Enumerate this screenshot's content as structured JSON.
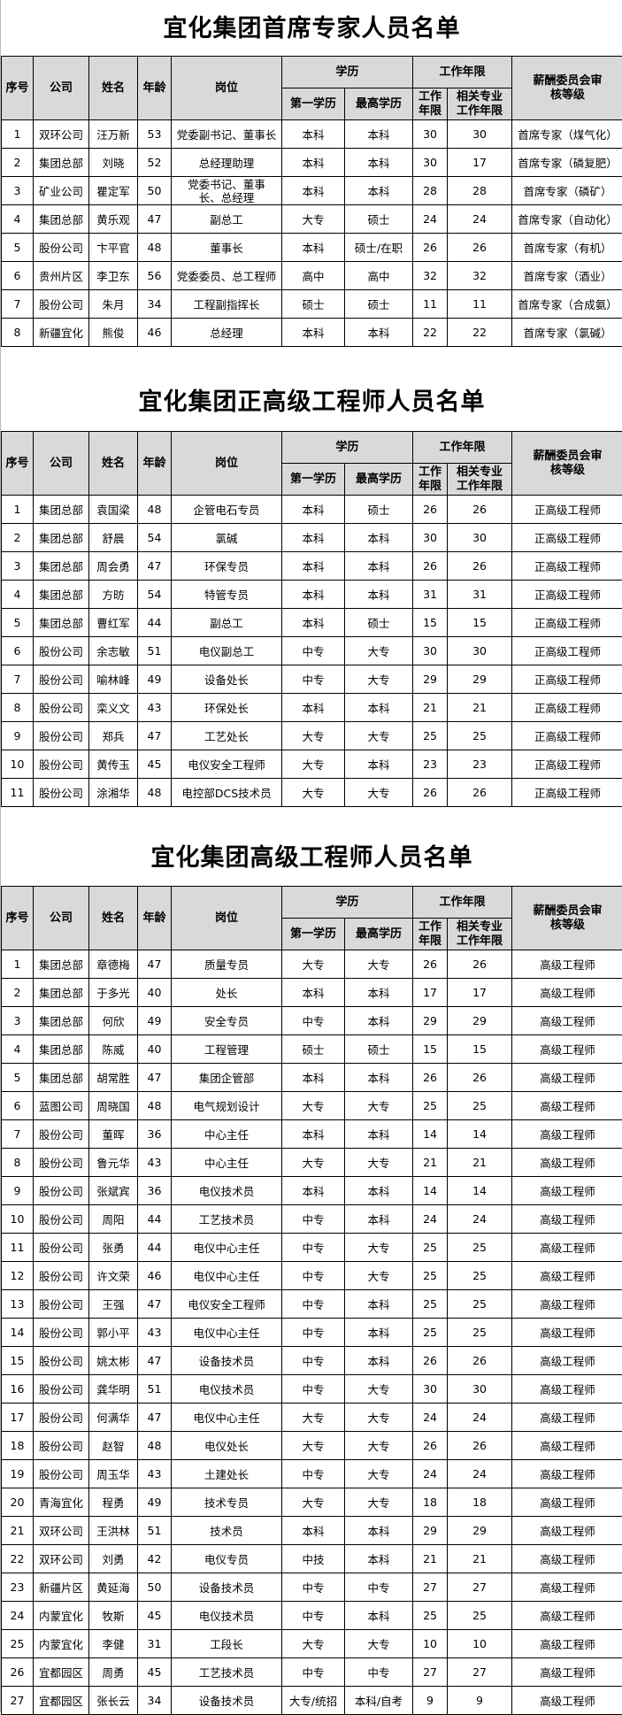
{
  "columns": {
    "no": "序号",
    "company": "公司",
    "name": "姓名",
    "age": "年龄",
    "position": "岗位",
    "education": "学历",
    "first_edu": "第一学历",
    "highest_edu": "最高学历",
    "work_years": "工作年限",
    "years": "工作年限",
    "related_years": "相关专业工作年限",
    "level": "薪酬委员会审核等级"
  },
  "tables": [
    {
      "title": "宜化集团首席专家人员名单",
      "rows": [
        [
          "1",
          "双环公司",
          "汪万新",
          "53",
          "党委副书记、董事长",
          "本科",
          "本科",
          "30",
          "30",
          "首席专家（煤气化）"
        ],
        [
          "2",
          "集团总部",
          "刘晓",
          "52",
          "总经理助理",
          "本科",
          "本科",
          "30",
          "17",
          "首席专家（磷复肥）"
        ],
        [
          "3",
          "矿业公司",
          "瞿定军",
          "50",
          "党委书记、董事长、总经理",
          "本科",
          "本科",
          "28",
          "28",
          "首席专家（磷矿）"
        ],
        [
          "4",
          "集团总部",
          "黄乐观",
          "47",
          "副总工",
          "大专",
          "硕士",
          "24",
          "24",
          "首席专家（自动化）"
        ],
        [
          "5",
          "股份公司",
          "卞平官",
          "48",
          "董事长",
          "本科",
          "硕士/在职",
          "26",
          "26",
          "首席专家（有机）"
        ],
        [
          "6",
          "贵州片区",
          "李卫东",
          "56",
          "党委委员、总工程师",
          "高中",
          "高中",
          "32",
          "32",
          "首席专家（酒业）"
        ],
        [
          "7",
          "股份公司",
          "朱月",
          "34",
          "工程副指挥长",
          "硕士",
          "硕士",
          "11",
          "11",
          "首席专家（合成氨）"
        ],
        [
          "8",
          "新疆宜化",
          "熊俊",
          "46",
          "总经理",
          "本科",
          "本科",
          "22",
          "22",
          "首席专家（氯碱）"
        ]
      ]
    },
    {
      "title": "宜化集团正高级工程师人员名单",
      "rows": [
        [
          "1",
          "集团总部",
          "袁国梁",
          "48",
          "企管电石专员",
          "本科",
          "硕士",
          "26",
          "26",
          "正高级工程师"
        ],
        [
          "2",
          "集团总部",
          "舒晨",
          "54",
          "氯碱",
          "本科",
          "本科",
          "30",
          "30",
          "正高级工程师"
        ],
        [
          "3",
          "集团总部",
          "周会勇",
          "47",
          "环保专员",
          "本科",
          "本科",
          "26",
          "26",
          "正高级工程师"
        ],
        [
          "4",
          "集团总部",
          "方昉",
          "54",
          "特管专员",
          "本科",
          "本科",
          "31",
          "31",
          "正高级工程师"
        ],
        [
          "5",
          "集团总部",
          "曹红军",
          "44",
          "副总工",
          "本科",
          "硕士",
          "15",
          "15",
          "正高级工程师"
        ],
        [
          "6",
          "股份公司",
          "余志敏",
          "51",
          "电仪副总工",
          "中专",
          "大专",
          "30",
          "30",
          "正高级工程师"
        ],
        [
          "7",
          "股份公司",
          "喻林峰",
          "49",
          "设备处长",
          "中专",
          "大专",
          "29",
          "29",
          "正高级工程师"
        ],
        [
          "8",
          "股份公司",
          "栾义文",
          "43",
          "环保处长",
          "本科",
          "本科",
          "21",
          "21",
          "正高级工程师"
        ],
        [
          "9",
          "股份公司",
          "郑兵",
          "47",
          "工艺处长",
          "大专",
          "大专",
          "25",
          "25",
          "正高级工程师"
        ],
        [
          "10",
          "股份公司",
          "黄传玉",
          "45",
          "电仪安全工程师",
          "大专",
          "本科",
          "23",
          "23",
          "正高级工程师"
        ],
        [
          "11",
          "股份公司",
          "涂湘华",
          "48",
          "电控部DCS技术员",
          "大专",
          "大专",
          "26",
          "26",
          "正高级工程师"
        ]
      ]
    },
    {
      "title": "宜化集团高级工程师人员名单",
      "rows": [
        [
          "1",
          "集团总部",
          "章德梅",
          "47",
          "质量专员",
          "大专",
          "大专",
          "26",
          "26",
          "高级工程师"
        ],
        [
          "2",
          "集团总部",
          "于多光",
          "40",
          "处长",
          "本科",
          "本科",
          "17",
          "17",
          "高级工程师"
        ],
        [
          "3",
          "集团总部",
          "何欣",
          "49",
          "安全专员",
          "中专",
          "本科",
          "29",
          "29",
          "高级工程师"
        ],
        [
          "4",
          "集团总部",
          "陈威",
          "40",
          "工程管理",
          "硕士",
          "硕士",
          "15",
          "15",
          "高级工程师"
        ],
        [
          "5",
          "集团总部",
          "胡常胜",
          "47",
          "集团企管部",
          "本科",
          "本科",
          "26",
          "26",
          "高级工程师"
        ],
        [
          "6",
          "蓝图公司",
          "周晓国",
          "48",
          "电气规划设计",
          "大专",
          "大专",
          "25",
          "25",
          "高级工程师"
        ],
        [
          "7",
          "股份公司",
          "董晖",
          "36",
          "中心主任",
          "本科",
          "本科",
          "14",
          "14",
          "高级工程师"
        ],
        [
          "8",
          "股份公司",
          "鲁元华",
          "43",
          "中心主任",
          "大专",
          "大专",
          "21",
          "21",
          "高级工程师"
        ],
        [
          "9",
          "股份公司",
          "张斌宾",
          "36",
          "电仪技术员",
          "本科",
          "本科",
          "14",
          "14",
          "高级工程师"
        ],
        [
          "10",
          "股份公司",
          "周阳",
          "44",
          "工艺技术员",
          "中专",
          "本科",
          "24",
          "24",
          "高级工程师"
        ],
        [
          "11",
          "股份公司",
          "张勇",
          "44",
          "电仪中心主任",
          "中专",
          "大专",
          "25",
          "25",
          "高级工程师"
        ],
        [
          "12",
          "股份公司",
          "许文荣",
          "46",
          "电仪中心主任",
          "中专",
          "大专",
          "25",
          "25",
          "高级工程师"
        ],
        [
          "13",
          "股份公司",
          "王强",
          "47",
          "电仪安全工程师",
          "中专",
          "本科",
          "25",
          "25",
          "高级工程师"
        ],
        [
          "14",
          "股份公司",
          "郭小平",
          "43",
          "电仪中心主任",
          "中专",
          "本科",
          "25",
          "25",
          "高级工程师"
        ],
        [
          "15",
          "股份公司",
          "姚太彬",
          "47",
          "设备技术员",
          "中专",
          "本科",
          "26",
          "26",
          "高级工程师"
        ],
        [
          "16",
          "股份公司",
          "龚华明",
          "51",
          "电仪技术员",
          "中专",
          "大专",
          "30",
          "30",
          "高级工程师"
        ],
        [
          "17",
          "股份公司",
          "何满华",
          "47",
          "电仪中心主任",
          "大专",
          "大专",
          "24",
          "24",
          "高级工程师"
        ],
        [
          "18",
          "股份公司",
          "赵智",
          "48",
          "电仪处长",
          "大专",
          "大专",
          "26",
          "26",
          "高级工程师"
        ],
        [
          "19",
          "股份公司",
          "周玉华",
          "43",
          "土建处长",
          "中专",
          "大专",
          "24",
          "24",
          "高级工程师"
        ],
        [
          "20",
          "青海宜化",
          "程勇",
          "49",
          "技术专员",
          "大专",
          "大专",
          "18",
          "18",
          "高级工程师"
        ],
        [
          "21",
          "双环公司",
          "王洪林",
          "51",
          "技术员",
          "本科",
          "本科",
          "29",
          "29",
          "高级工程师"
        ],
        [
          "22",
          "双环公司",
          "刘勇",
          "42",
          "电仪专员",
          "中技",
          "本科",
          "21",
          "21",
          "高级工程师"
        ],
        [
          "23",
          "新疆片区",
          "黄延海",
          "50",
          "设备技术员",
          "中专",
          "中专",
          "27",
          "27",
          "高级工程师"
        ],
        [
          "24",
          "内蒙宜化",
          "牧斯",
          "45",
          "电仪技术员",
          "中专",
          "本科",
          "25",
          "25",
          "高级工程师"
        ],
        [
          "25",
          "内蒙宜化",
          "李健",
          "31",
          "工段长",
          "大专",
          "大专",
          "10",
          "10",
          "高级工程师"
        ],
        [
          "26",
          "宜都园区",
          "周勇",
          "45",
          "工艺技术员",
          "中专",
          "中专",
          "27",
          "27",
          "高级工程师"
        ],
        [
          "27",
          "宜都园区",
          "张长云",
          "34",
          "设备技术员",
          "大专/统招",
          "本科/自考",
          "9",
          "9",
          "高级工程师"
        ]
      ]
    }
  ]
}
